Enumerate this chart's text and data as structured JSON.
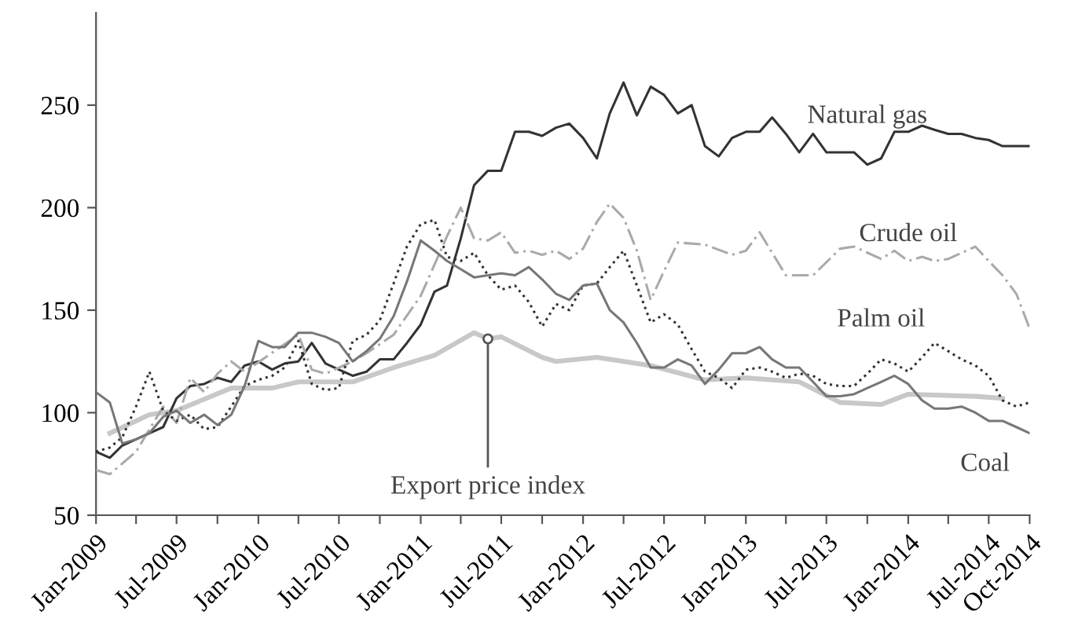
{
  "chart_data": {
    "type": "line",
    "x": [
      "2009-01",
      "2009-02",
      "2009-03",
      "2009-04",
      "2009-05",
      "2009-06",
      "2009-07",
      "2009-08",
      "2009-09",
      "2009-10",
      "2009-11",
      "2009-12",
      "2010-01",
      "2010-02",
      "2010-03",
      "2010-04",
      "2010-05",
      "2010-06",
      "2010-07",
      "2010-08",
      "2010-09",
      "2010-10",
      "2010-11",
      "2010-12",
      "2011-01",
      "2011-02",
      "2011-03",
      "2011-04",
      "2011-05",
      "2011-06",
      "2011-07",
      "2011-08",
      "2011-09",
      "2011-10",
      "2011-11",
      "2011-12",
      "2012-01",
      "2012-02",
      "2012-03",
      "2012-04",
      "2012-05",
      "2012-06",
      "2012-07",
      "2012-08",
      "2012-09",
      "2012-10",
      "2012-11",
      "2012-12",
      "2013-01",
      "2013-02",
      "2013-03",
      "2013-04",
      "2013-05",
      "2013-06",
      "2013-07",
      "2013-08",
      "2013-09",
      "2013-10",
      "2013-11",
      "2013-12",
      "2014-01",
      "2014-02",
      "2014-03",
      "2014-04",
      "2014-05",
      "2014-06",
      "2014-07",
      "2014-08",
      "2014-09",
      "2014-10"
    ],
    "series": [
      {
        "name": "Natural gas",
        "color": "#333333",
        "line_style": "solid",
        "values": [
          81,
          78,
          84,
          87,
          90,
          93,
          107,
          113,
          114,
          117,
          115,
          123,
          125,
          121,
          124,
          125,
          134,
          124,
          121,
          118,
          120,
          126,
          126,
          134,
          143,
          159,
          162,
          185,
          211,
          218,
          218,
          237,
          237,
          235,
          239,
          241,
          234,
          224,
          246,
          261,
          245,
          259,
          255,
          246,
          250,
          230,
          225,
          234,
          237,
          237,
          244,
          236,
          227,
          236,
          227,
          227,
          227,
          221,
          224,
          237,
          237,
          240,
          238,
          236,
          236,
          234,
          233,
          230,
          230,
          230
        ]
      },
      {
        "name": "Crude oil",
        "color": "#aaaaaa",
        "line_style": "dashed",
        "x": [
          "2009-01",
          "2009-02",
          "2009-04",
          "2009-06",
          "2009-07",
          "2009-08",
          "2009-09",
          "2009-10",
          "2009-11",
          "2009-12",
          "2010-04",
          "2010-05",
          "2010-06",
          "2010-08",
          "2010-09",
          "2010-11",
          "2011-01",
          "2011-03",
          "2011-04",
          "2011-05",
          "2011-06",
          "2011-07",
          "2011-08",
          "2011-09",
          "2011-10",
          "2011-11",
          "2011-12",
          "2012-01",
          "2012-02",
          "2012-03",
          "2012-04",
          "2012-05",
          "2012-06",
          "2012-07",
          "2012-08",
          "2012-10",
          "2012-12",
          "2013-01",
          "2013-02",
          "2013-03",
          "2013-04",
          "2013-06",
          "2013-08",
          "2013-09",
          "2013-11",
          "2013-12",
          "2014-01",
          "2014-02",
          "2014-03",
          "2014-04",
          "2014-06",
          "2014-07",
          "2014-08",
          "2014-09",
          "2014-10"
        ],
        "values": [
          72,
          70,
          81,
          103,
          95,
          117,
          110,
          119,
          125,
          120,
          138,
          121,
          119,
          125,
          129,
          138,
          157,
          186,
          200,
          185,
          184,
          188,
          178,
          179,
          177,
          179,
          175,
          180,
          193,
          202,
          195,
          179,
          155,
          169,
          183,
          182,
          177,
          179,
          188,
          178,
          167,
          167,
          180,
          181,
          175,
          179,
          174,
          176,
          174,
          175,
          181,
          174,
          167,
          158,
          141
        ]
      },
      {
        "name": "Palm oil",
        "color": "#333333",
        "line_style": "dotted",
        "values": [
          81,
          83,
          88,
          103,
          120,
          101,
          96,
          99,
          92,
          93,
          103,
          113,
          116,
          118,
          122,
          135,
          114,
          111,
          112,
          135,
          138,
          145,
          163,
          181,
          192,
          194,
          176,
          174,
          178,
          167,
          160,
          162,
          154,
          142,
          153,
          150,
          162,
          163,
          171,
          179,
          162,
          144,
          148,
          143,
          131,
          120,
          117,
          112,
          121,
          122,
          120,
          117,
          119,
          118,
          114,
          113,
          113,
          119,
          126,
          124,
          120,
          127,
          134,
          130,
          126,
          123,
          118,
          106,
          103,
          105
        ]
      },
      {
        "name": "Coal",
        "color": "#777777",
        "line_style": "solid",
        "values": [
          110,
          105,
          85,
          87,
          90,
          98,
          101,
          95,
          99,
          94,
          99,
          113,
          135,
          132,
          132,
          139,
          139,
          137,
          134,
          125,
          130,
          136,
          147,
          164,
          184,
          179,
          174,
          170,
          166,
          167,
          168,
          167,
          171,
          165,
          158,
          155,
          162,
          163,
          150,
          144,
          134,
          122,
          122,
          126,
          123,
          114,
          121,
          129,
          129,
          132,
          126,
          122,
          122,
          115,
          108,
          108,
          109,
          112,
          115,
          118,
          114,
          106,
          102,
          102,
          103,
          100,
          96,
          96,
          93,
          90
        ]
      },
      {
        "name": "Export price index",
        "color": "#c8c8c8",
        "line_style": "solid",
        "x": [
          "2009-02",
          "2009-05",
          "2009-06",
          "2009-07",
          "2009-11",
          "2010-02",
          "2010-04",
          "2010-08",
          "2010-11",
          "2011-02",
          "2011-05",
          "2011-06",
          "2011-07",
          "2011-10",
          "2011-11",
          "2012-02",
          "2012-06",
          "2012-10",
          "2013-01",
          "2013-05",
          "2013-08",
          "2013-11",
          "2014-01",
          "2014-06",
          "2014-08"
        ],
        "values": [
          90,
          99,
          100,
          101,
          112,
          112,
          115,
          115,
          122,
          128,
          139,
          136,
          137,
          127,
          125,
          127,
          123,
          116,
          117,
          115,
          105,
          104,
          109,
          108,
          107
        ]
      }
    ],
    "xlim": [
      "2009-01",
      "2014-10"
    ],
    "xticks": [
      {
        "value": "2009-01",
        "label": "Jan-2009"
      },
      {
        "value": "2009-04",
        "label": null
      },
      {
        "value": "2009-07",
        "label": "Jul-2009"
      },
      {
        "value": "2009-10",
        "label": null
      },
      {
        "value": "2010-01",
        "label": "Jan-2010"
      },
      {
        "value": "2010-04",
        "label": null
      },
      {
        "value": "2010-07",
        "label": "Jul-2010"
      },
      {
        "value": "2010-10",
        "label": null
      },
      {
        "value": "2011-01",
        "label": "Jan-2011"
      },
      {
        "value": "2011-04",
        "label": null
      },
      {
        "value": "2011-07",
        "label": "Jul-2011"
      },
      {
        "value": "2011-10",
        "label": null
      },
      {
        "value": "2012-01",
        "label": "Jan-2012"
      },
      {
        "value": "2012-04",
        "label": null
      },
      {
        "value": "2012-07",
        "label": "Jul-2012"
      },
      {
        "value": "2012-10",
        "label": null
      },
      {
        "value": "2013-01",
        "label": "Jan-2013"
      },
      {
        "value": "2013-04",
        "label": null
      },
      {
        "value": "2013-07",
        "label": "Jul-2013"
      },
      {
        "value": "2013-10",
        "label": null
      },
      {
        "value": "2014-01",
        "label": "Jan-2014"
      },
      {
        "value": "2014-04",
        "label": null
      },
      {
        "value": "2014-07",
        "label": "Jul-2014"
      },
      {
        "value": "2014-10",
        "label": "Oct-2014"
      }
    ],
    "ylim": [
      50,
      295
    ],
    "yticks": [
      50,
      100,
      150,
      200,
      250
    ],
    "grid": false,
    "legend": false,
    "marker": "none"
  }
}
